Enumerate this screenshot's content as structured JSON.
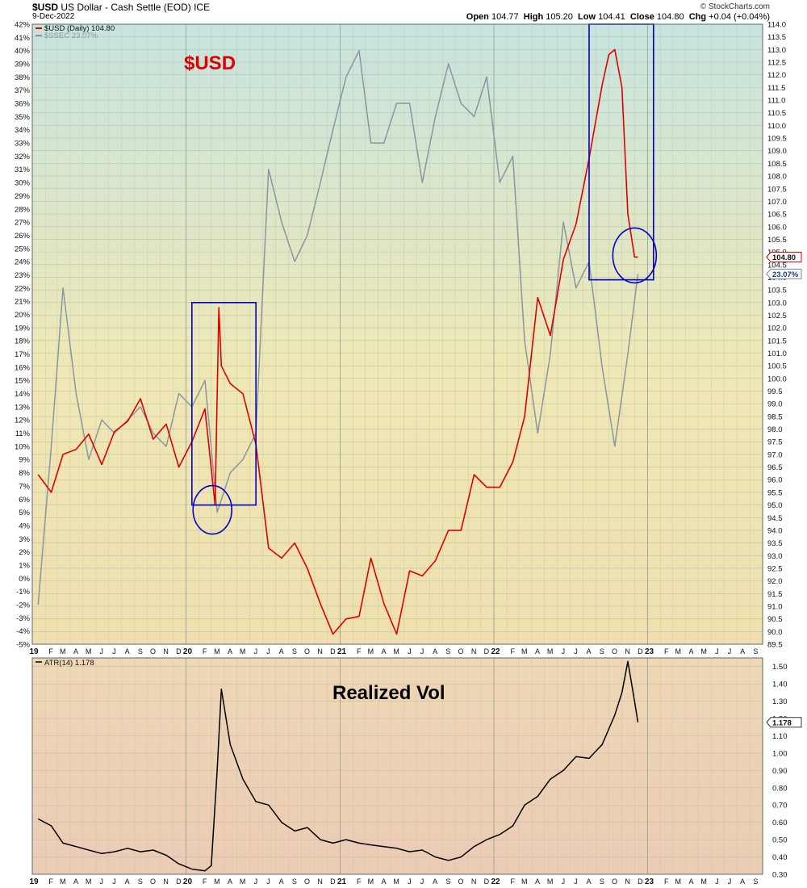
{
  "header": {
    "symbol": "$USD",
    "name": "US Dollar - Cash Settle (EOD)",
    "exchange": "ICE",
    "date": "9-Dec-2022",
    "ohlc_label": "Open",
    "open": "104.77",
    "high_label": "High",
    "high": "105.20",
    "low_label": "Low",
    "low": "104.41",
    "close_label": "Close",
    "close": "104.80",
    "chg_label": "Chg",
    "chg": "+0.04 (+0.04%)",
    "credit": "© StockCharts.com"
  },
  "annotations": {
    "price_title": "$USD",
    "vol_title": "Realized Vol"
  },
  "colors": {
    "usd_line": "#dd0000",
    "sse_line": "#8a96a0",
    "atr_line": "#000000",
    "box": "#0000cc",
    "title_red": "#e00000"
  },
  "chart_data": [
    {
      "type": "line",
      "panel": "price",
      "series": [
        {
          "name": "$USD (Daily) 104.80",
          "axis": "right",
          "x": [
            "2019-01",
            "2019-02",
            "2019-03",
            "2019-04",
            "2019-05",
            "2019-06",
            "2019-07",
            "2019-08",
            "2019-09",
            "2019-10",
            "2019-11",
            "2019-12",
            "2020-01",
            "2020-02",
            "2020-03-10",
            "2020-03-19",
            "2020-03-25",
            "2020-04",
            "2020-05",
            "2020-06",
            "2020-07",
            "2020-08",
            "2020-09",
            "2020-10",
            "2020-11",
            "2020-12",
            "2021-01",
            "2021-02",
            "2021-03",
            "2021-04",
            "2021-05",
            "2021-06",
            "2021-07",
            "2021-08",
            "2021-09",
            "2021-10",
            "2021-11",
            "2021-12",
            "2022-01",
            "2022-02",
            "2022-03",
            "2022-04",
            "2022-05",
            "2022-06",
            "2022-07",
            "2022-08",
            "2022-09",
            "2022-10-01",
            "2022-10-15",
            "2022-11-01",
            "2022-11-15",
            "2022-12-01",
            "2022-12-09"
          ],
          "values": [
            96.2,
            95.5,
            97.0,
            97.2,
            97.8,
            96.6,
            97.9,
            98.3,
            99.2,
            97.6,
            98.2,
            96.5,
            97.5,
            98.8,
            95.0,
            102.8,
            100.5,
            99.8,
            99.4,
            97.4,
            93.3,
            92.9,
            93.5,
            92.5,
            91.1,
            89.9,
            90.5,
            90.6,
            92.9,
            91.1,
            89.9,
            92.4,
            92.2,
            92.8,
            94.0,
            94.0,
            96.2,
            95.7,
            95.7,
            96.7,
            98.5,
            103.2,
            101.7,
            104.7,
            106.1,
            108.7,
            111.6,
            112.8,
            113.0,
            111.5,
            106.5,
            104.8,
            104.8
          ]
        },
        {
          "name": "$SSEC 23.07%",
          "axis": "left",
          "unit": "%",
          "x": [
            "2019-01",
            "2019-02",
            "2019-03",
            "2019-04",
            "2019-05",
            "2019-06",
            "2019-07",
            "2019-08",
            "2019-09",
            "2019-10",
            "2019-11",
            "2019-12",
            "2020-01",
            "2020-02",
            "2020-03",
            "2020-04",
            "2020-05",
            "2020-06",
            "2020-07",
            "2020-08",
            "2020-09",
            "2020-10",
            "2020-11",
            "2020-12",
            "2021-01",
            "2021-02",
            "2021-03",
            "2021-04",
            "2021-05",
            "2021-06",
            "2021-07",
            "2021-08",
            "2021-09",
            "2021-10",
            "2021-11",
            "2021-12",
            "2022-01",
            "2022-02",
            "2022-03",
            "2022-04",
            "2022-05",
            "2022-06",
            "2022-07",
            "2022-08",
            "2022-09",
            "2022-10",
            "2022-11",
            "2022-12-09"
          ],
          "values": [
            -2,
            10,
            22,
            14,
            9,
            12,
            11,
            12,
            13,
            11,
            10,
            14,
            13,
            15,
            5,
            8,
            9,
            11,
            31,
            27,
            24,
            26,
            30,
            34,
            38,
            40,
            33,
            33,
            36,
            36,
            30,
            35,
            39,
            36,
            35,
            38,
            30,
            32,
            18,
            11,
            17,
            27,
            22,
            24,
            16,
            10,
            17,
            23.07
          ]
        }
      ],
      "title": "",
      "xlabel": "",
      "ylabel": "",
      "ylim_right": [
        89.5,
        114.0
      ],
      "ylim_left": [
        -5,
        42
      ],
      "x_ticks": [
        "19",
        "F",
        "M",
        "A",
        "M",
        "J",
        "J",
        "A",
        "S",
        "O",
        "N",
        "D",
        "20",
        "F",
        "M",
        "A",
        "M",
        "J",
        "J",
        "A",
        "S",
        "O",
        "N",
        "D",
        "21",
        "F",
        "M",
        "A",
        "M",
        "J",
        "J",
        "A",
        "S",
        "O",
        "N",
        "D",
        "22",
        "F",
        "M",
        "A",
        "M",
        "J",
        "J",
        "A",
        "S",
        "O",
        "N",
        "D",
        "23",
        "F",
        "M",
        "A",
        "M",
        "J",
        "J",
        "A",
        "S"
      ],
      "grid": true,
      "legend": "top-left",
      "last_value_labels": [
        "104.80",
        "23.07%"
      ],
      "highlight_boxes": [
        {
          "x_range": [
            "2020-01",
            "2020-06"
          ],
          "y_range": [
            95.0,
            103.0
          ]
        },
        {
          "x_range": [
            "2022-08",
            "2023-01"
          ],
          "y_range": [
            103.9,
            114.0
          ]
        }
      ]
    },
    {
      "type": "line",
      "panel": "indicator",
      "series": [
        {
          "name": "ATR(14) 1.178",
          "x": [
            "2019-01",
            "2019-02",
            "2019-03",
            "2019-04",
            "2019-05",
            "2019-06",
            "2019-07",
            "2019-08",
            "2019-09",
            "2019-10",
            "2019-11",
            "2019-12",
            "2020-01",
            "2020-02",
            "2020-03-01",
            "2020-03-15",
            "2020-03-25",
            "2020-04",
            "2020-05",
            "2020-06",
            "2020-07",
            "2020-08",
            "2020-09",
            "2020-10",
            "2020-11",
            "2020-12",
            "2021-01",
            "2021-02",
            "2021-03",
            "2021-04",
            "2021-05",
            "2021-06",
            "2021-07",
            "2021-08",
            "2021-09",
            "2021-10",
            "2021-11",
            "2021-12",
            "2022-01",
            "2022-02",
            "2022-03",
            "2022-04",
            "2022-05",
            "2022-06",
            "2022-07",
            "2022-08",
            "2022-09",
            "2022-10",
            "2022-11-01",
            "2022-11-15",
            "2022-12-01",
            "2022-12-09"
          ],
          "values": [
            0.62,
            0.58,
            0.48,
            0.46,
            0.44,
            0.42,
            0.43,
            0.45,
            0.43,
            0.44,
            0.41,
            0.36,
            0.33,
            0.32,
            0.35,
            0.9,
            1.37,
            1.05,
            0.85,
            0.72,
            0.7,
            0.6,
            0.55,
            0.57,
            0.5,
            0.48,
            0.5,
            0.48,
            0.47,
            0.46,
            0.45,
            0.43,
            0.44,
            0.4,
            0.38,
            0.4,
            0.46,
            0.5,
            0.53,
            0.58,
            0.7,
            0.75,
            0.85,
            0.9,
            0.98,
            0.97,
            1.05,
            1.22,
            1.35,
            1.53,
            1.3,
            1.178
          ]
        }
      ],
      "title": "",
      "xlabel": "",
      "ylabel": "",
      "ylim": [
        0.3,
        1.55
      ],
      "y_ticks": [
        "1.50",
        "1.40",
        "1.30",
        "1.20",
        "1.10",
        "1.00",
        "0.90",
        "0.80",
        "0.70",
        "0.60",
        "0.50",
        "0.40",
        "0.30"
      ],
      "x_ticks": [
        "19",
        "F",
        "M",
        "A",
        "M",
        "J",
        "J",
        "A",
        "S",
        "O",
        "N",
        "D",
        "20",
        "F",
        "M",
        "A",
        "M",
        "J",
        "J",
        "A",
        "S",
        "O",
        "N",
        "D",
        "21",
        "F",
        "M",
        "A",
        "M",
        "J",
        "J",
        "A",
        "S",
        "O",
        "N",
        "D",
        "22",
        "F",
        "M",
        "A",
        "M",
        "J",
        "J",
        "A",
        "S",
        "O",
        "N",
        "D",
        "23",
        "F",
        "M",
        "A",
        "M",
        "J",
        "J",
        "A",
        "S"
      ],
      "grid": true,
      "legend": "top-left",
      "last_value_labels": [
        "1.178"
      ]
    }
  ]
}
